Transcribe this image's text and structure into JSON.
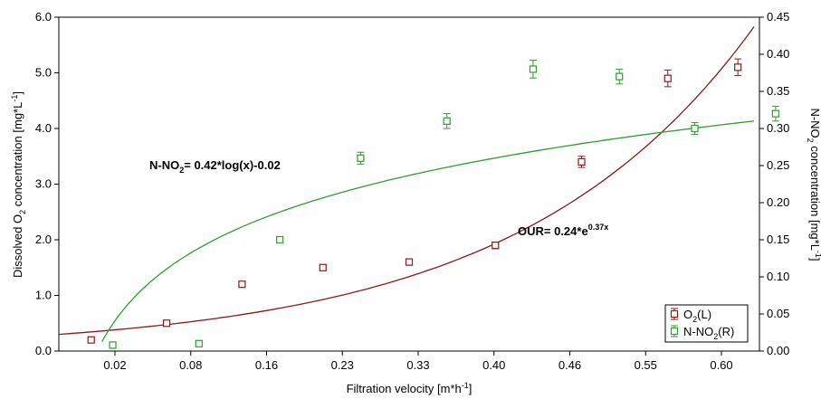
{
  "chart_data": {
    "type": "scatter",
    "x_label": {
      "base": "Filtration velocity [m*h",
      "sup": "-1",
      "end": "]"
    },
    "y_left_label": {
      "pre": "Dissolved O",
      "sub": "2",
      "mid": " concentration [mg*L",
      "sup": "-1",
      "end": "]"
    },
    "y_right_label": {
      "pre": "N-NO",
      "sub": "2",
      "mid": " concentration [mg*L",
      "sup": "-1",
      "end": "]"
    },
    "x_range": [
      0.0,
      0.65
    ],
    "x_ticks": [
      "0.02",
      "0.08",
      "0.16",
      "0.23",
      "0.33",
      "0.40",
      "0.46",
      "0.55",
      "0.60"
    ],
    "y_left_range": [
      0.0,
      6.0
    ],
    "y_left_ticks": [
      "0.0",
      "1.0",
      "2.0",
      "3.0",
      "4.0",
      "5.0",
      "6.0"
    ],
    "y_right_range": [
      0.0,
      0.45
    ],
    "y_right_ticks": [
      "0.00",
      "0.05",
      "0.10",
      "0.15",
      "0.20",
      "0.25",
      "0.30",
      "0.35",
      "0.40",
      "0.45"
    ],
    "colors": {
      "o2": "#8b1a1a",
      "nno2": "#2e9e2e"
    },
    "series": [
      {
        "name": "O2(L)",
        "axis": "left",
        "points": [
          {
            "x": 0.03,
            "y": 0.2,
            "err": 0.03
          },
          {
            "x": 0.1,
            "y": 0.5,
            "err": 0.04
          },
          {
            "x": 0.17,
            "y": 1.2,
            "err": 0.05
          },
          {
            "x": 0.245,
            "y": 1.5,
            "err": 0.05
          },
          {
            "x": 0.325,
            "y": 1.6,
            "err": 0.05
          },
          {
            "x": 0.405,
            "y": 1.9,
            "err": 0.06
          },
          {
            "x": 0.485,
            "y": 3.4,
            "err": 0.1
          },
          {
            "x": 0.565,
            "y": 4.9,
            "err": 0.15
          },
          {
            "x": 0.63,
            "y": 5.1,
            "err": 0.15
          }
        ]
      },
      {
        "name": "N-NO2(R)",
        "axis": "right",
        "points": [
          {
            "x": 0.05,
            "y": 0.008,
            "err": 0.004
          },
          {
            "x": 0.13,
            "y": 0.01,
            "err": 0.003
          },
          {
            "x": 0.205,
            "y": 0.15,
            "err": 0.004
          },
          {
            "x": 0.28,
            "y": 0.26,
            "err": 0.008
          },
          {
            "x": 0.36,
            "y": 0.31,
            "err": 0.01
          },
          {
            "x": 0.44,
            "y": 0.38,
            "err": 0.012
          },
          {
            "x": 0.52,
            "y": 0.37,
            "err": 0.01
          },
          {
            "x": 0.59,
            "y": 0.3,
            "err": 0.008
          },
          {
            "x": 0.665,
            "y": 0.32,
            "err": 0.01
          }
        ]
      }
    ],
    "fits": [
      {
        "series": "O2(L)",
        "equation": {
          "pre": "OUR= 0.24*e",
          "sup": "0.37x"
        }
      },
      {
        "series": "N-NO2(R)",
        "equation": {
          "pre": "N-NO",
          "sub": "2",
          "post": "= 0.42*log(x)-0.02"
        }
      }
    ],
    "legend": {
      "position": "bottom-right",
      "entries": [
        {
          "pre": "O",
          "sub": "2",
          "post": "(L)"
        },
        {
          "pre": "N-NO",
          "sub": "2",
          "post": "(R)"
        }
      ]
    }
  }
}
